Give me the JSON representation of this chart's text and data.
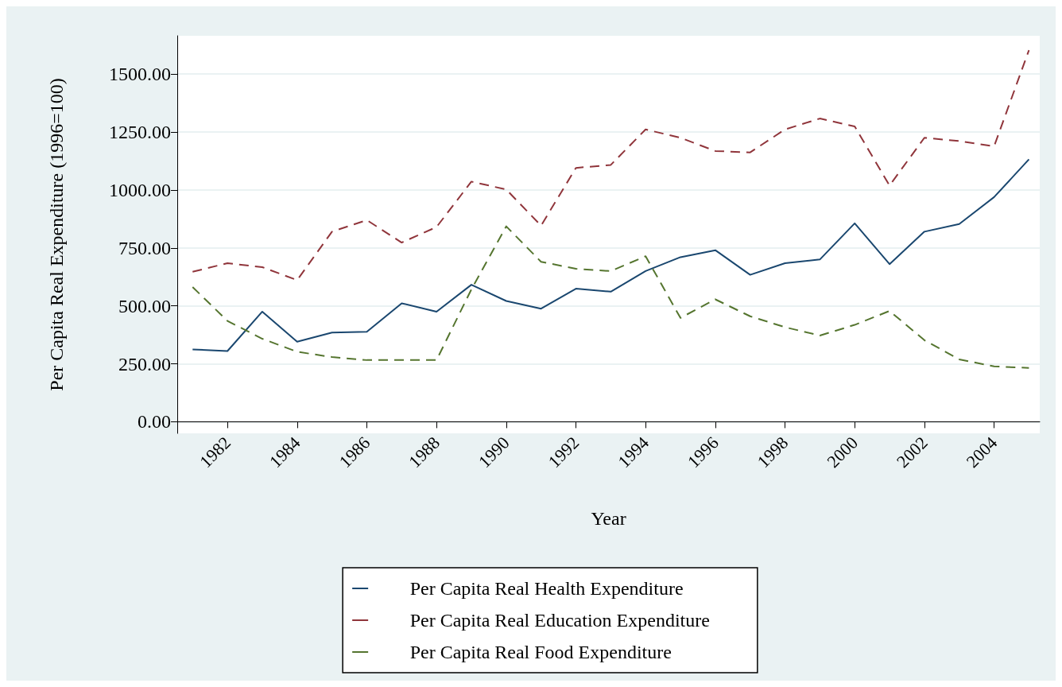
{
  "chart_data": {
    "type": "line",
    "xlabel": "Year",
    "ylabel": "Per Capita Real Expenditure (1996=100)",
    "x": [
      1981,
      1982,
      1983,
      1984,
      1985,
      1986,
      1987,
      1988,
      1989,
      1990,
      1991,
      1992,
      1993,
      1994,
      1995,
      1996,
      1997,
      1998,
      1999,
      2000,
      2001,
      2002,
      2003,
      2004,
      2005
    ],
    "series": [
      {
        "name": "Per Capita Real Health Expenditure",
        "color": "#1a476f",
        "line_style": "solid",
        "values": [
          312,
          305,
          475,
          345,
          385,
          388,
          511,
          475,
          591,
          521,
          488,
          574,
          561,
          650,
          710,
          740,
          634,
          684,
          700,
          856,
          680,
          820,
          853,
          969,
          1132
        ]
      },
      {
        "name": "Per Capita Real Education Expenditure",
        "color": "#90353b",
        "line_style": "dashed",
        "values": [
          647,
          684,
          667,
          611,
          820,
          870,
          773,
          840,
          1036,
          1002,
          846,
          1095,
          1108,
          1261,
          1225,
          1168,
          1162,
          1261,
          1308,
          1274,
          1019,
          1225,
          1211,
          1188,
          1603
        ]
      },
      {
        "name": "Per Capita Real Food Expenditure",
        "color": "#55752f",
        "line_style": "dashed",
        "values": [
          581,
          435,
          358,
          302,
          279,
          266,
          266,
          266,
          571,
          843,
          690,
          660,
          650,
          714,
          448,
          528,
          455,
          408,
          372,
          418,
          478,
          352,
          269,
          239,
          232
        ]
      }
    ],
    "xlim": [
      1980.56,
      2005.31
    ],
    "xticks": [
      1982,
      1984,
      1986,
      1988,
      1990,
      1992,
      1994,
      1996,
      1998,
      2000,
      2002,
      2004
    ],
    "ylim": [
      -50,
      1665
    ],
    "yticks": [
      {
        "value": 0,
        "label": "0.00"
      },
      {
        "value": 250,
        "label": "250.00"
      },
      {
        "value": 500,
        "label": "500.00"
      },
      {
        "value": 750,
        "label": "750.00"
      },
      {
        "value": 1000,
        "label": "1000.00"
      },
      {
        "value": 1250,
        "label": "1250.00"
      },
      {
        "value": 1500,
        "label": "1500.00"
      }
    ],
    "grid": "y",
    "legend": "bottom",
    "marker": "none"
  }
}
